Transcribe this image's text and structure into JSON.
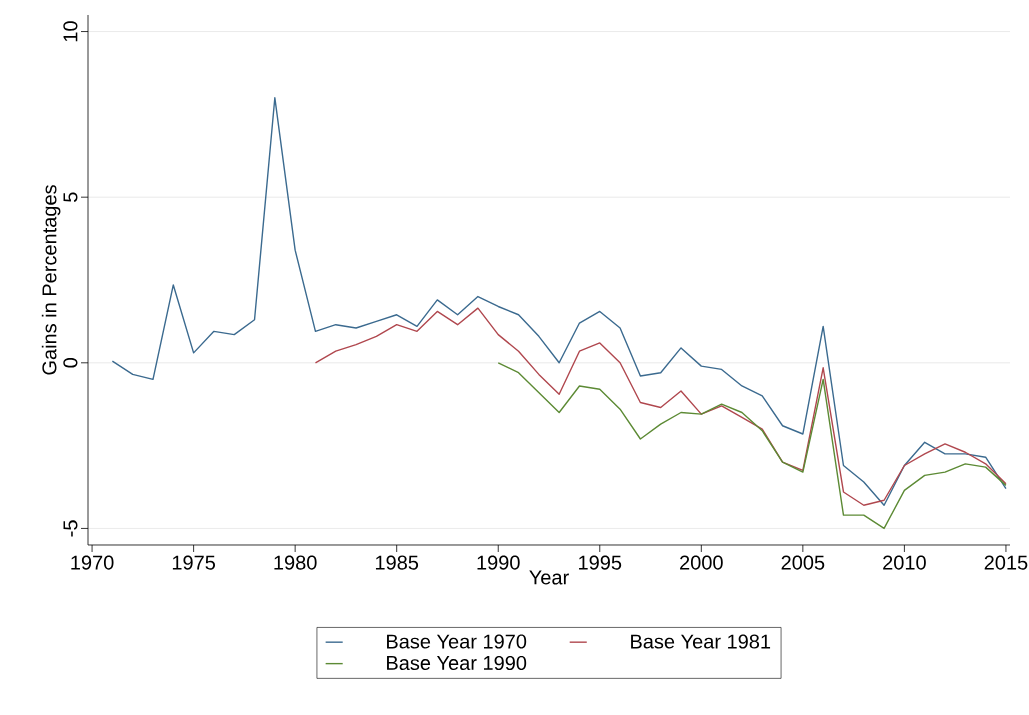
{
  "chart_data": {
    "type": "line",
    "xlabel": "Year",
    "ylabel": "Gains in Percentages",
    "xlim": [
      1969.8,
      2015.2
    ],
    "ylim": [
      -5.5,
      10.5
    ],
    "xticks": [
      1970,
      1975,
      1980,
      1985,
      1990,
      1995,
      2000,
      2005,
      2010,
      2015
    ],
    "yticks": [
      -5,
      0,
      5,
      10
    ],
    "grid": "y",
    "legend": "bottom",
    "line_style": "solid",
    "marker": "none",
    "series": [
      {
        "name": "Base Year 1970",
        "color": "#3b6a8f",
        "x": [
          1971,
          1972,
          1973,
          1974,
          1975,
          1976,
          1977,
          1978,
          1979,
          1980,
          1981,
          1982,
          1983,
          1984,
          1985,
          1986,
          1987,
          1988,
          1989,
          1990,
          1991,
          1992,
          1993,
          1994,
          1995,
          1996,
          1997,
          1998,
          1999,
          2000,
          2001,
          2002,
          2003,
          2004,
          2005,
          2006,
          2007,
          2008,
          2009,
          2010,
          2011,
          2012,
          2013,
          2014,
          2015
        ],
        "values": [
          0.05,
          -0.35,
          -0.5,
          2.35,
          0.3,
          0.95,
          0.85,
          1.3,
          8.0,
          3.4,
          0.95,
          1.15,
          1.05,
          1.25,
          1.45,
          1.1,
          1.9,
          1.45,
          2.0,
          1.7,
          1.45,
          0.8,
          0.0,
          1.2,
          1.55,
          1.05,
          -0.4,
          -0.3,
          0.45,
          -0.1,
          -0.2,
          -0.7,
          -1.0,
          -1.9,
          -2.15,
          1.1,
          -3.1,
          -3.6,
          -4.3,
          -3.1,
          -2.4,
          -2.75,
          -2.75,
          -2.85,
          -3.8
        ]
      },
      {
        "name": "Base Year 1981",
        "color": "#b0474e",
        "x": [
          1981,
          1982,
          1983,
          1984,
          1985,
          1986,
          1987,
          1988,
          1989,
          1990,
          1991,
          1992,
          1993,
          1994,
          1995,
          1996,
          1997,
          1998,
          1999,
          2000,
          2001,
          2002,
          2003,
          2004,
          2005,
          2006,
          2007,
          2008,
          2009,
          2010,
          2011,
          2012,
          2013,
          2014,
          2015
        ],
        "values": [
          0.0,
          0.35,
          0.55,
          0.8,
          1.15,
          0.95,
          1.55,
          1.15,
          1.65,
          0.85,
          0.35,
          -0.35,
          -0.95,
          0.35,
          0.6,
          0.0,
          -1.2,
          -1.35,
          -0.85,
          -1.55,
          -1.3,
          -1.65,
          -2.0,
          -3.0,
          -3.25,
          -0.15,
          -3.9,
          -4.3,
          -4.15,
          -3.1,
          -2.75,
          -2.45,
          -2.7,
          -3.05,
          -3.65
        ]
      },
      {
        "name": "Base Year 1990",
        "color": "#5c8a34",
        "x": [
          1990,
          1991,
          1992,
          1993,
          1994,
          1995,
          1996,
          1997,
          1998,
          1999,
          2000,
          2001,
          2002,
          2003,
          2004,
          2005,
          2006,
          2007,
          2008,
          2009,
          2010,
          2011,
          2012,
          2013,
          2014,
          2015
        ],
        "values": [
          0.0,
          -0.3,
          -0.9,
          -1.5,
          -0.7,
          -0.8,
          -1.4,
          -2.3,
          -1.85,
          -1.5,
          -1.55,
          -1.25,
          -1.5,
          -2.05,
          -3.0,
          -3.3,
          -0.5,
          -4.6,
          -4.6,
          -5.0,
          -3.85,
          -3.4,
          -3.3,
          -3.05,
          -3.15,
          -3.7
        ]
      }
    ]
  }
}
